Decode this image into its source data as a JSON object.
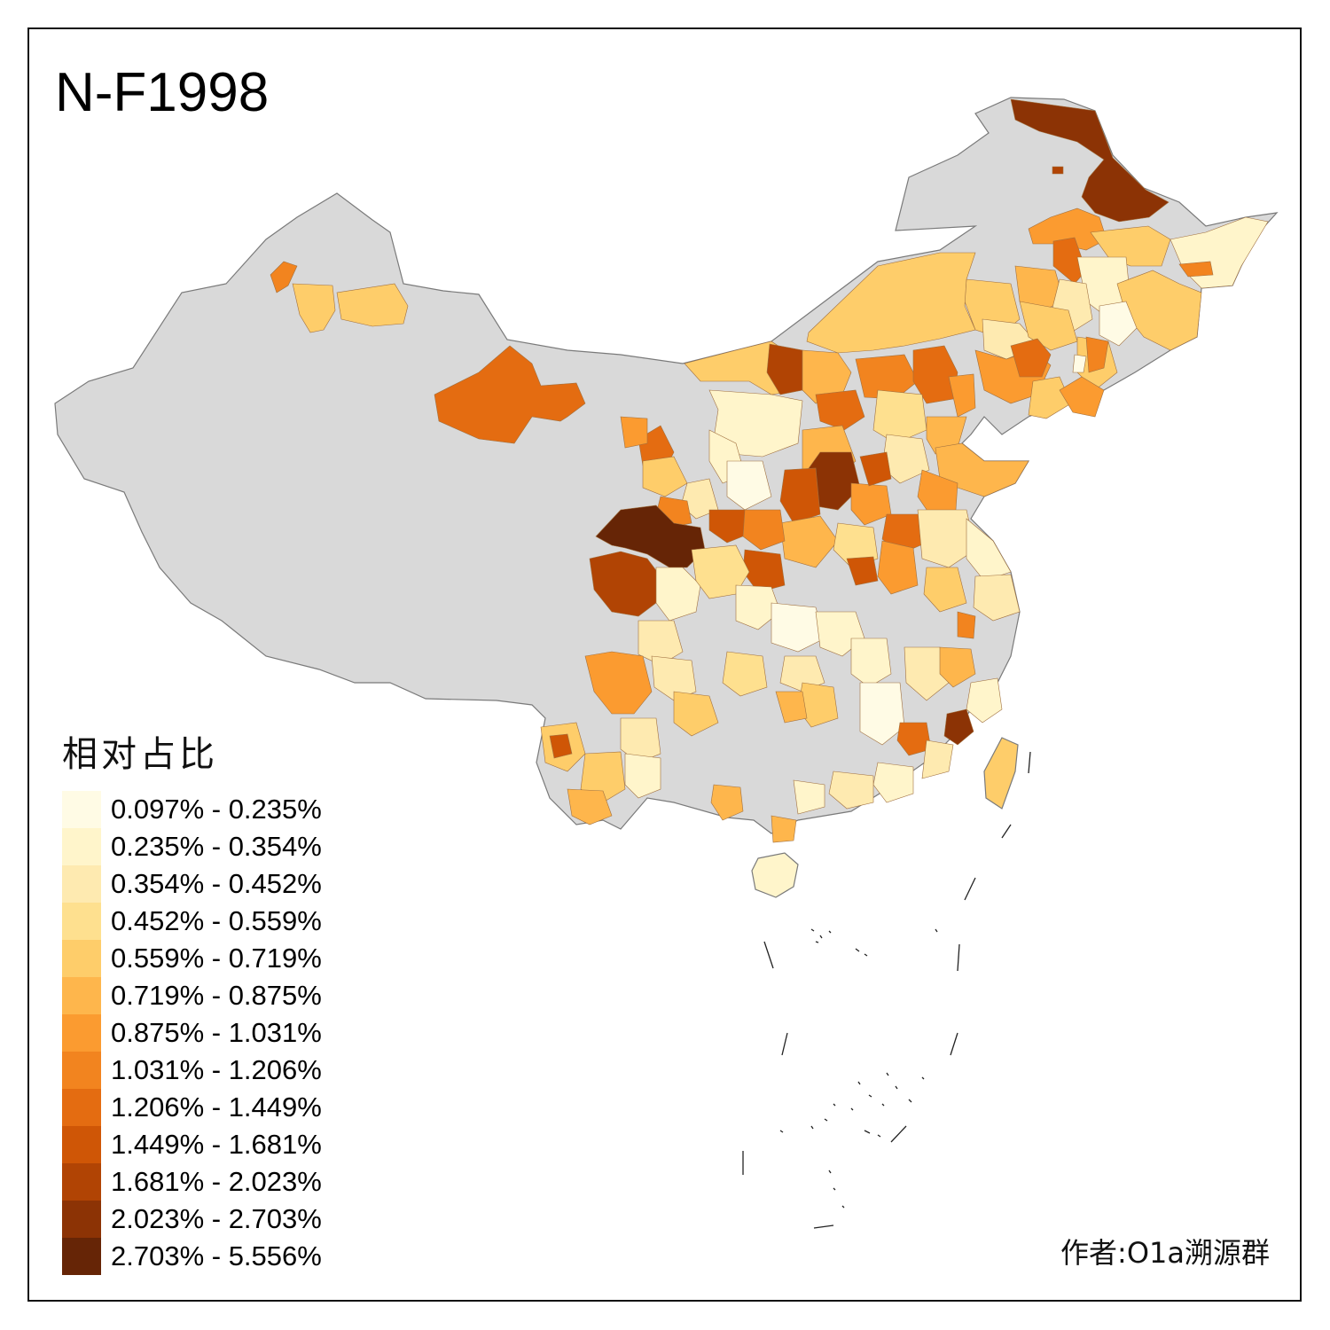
{
  "title": "N-F1998",
  "legend": {
    "title": "相对占比",
    "classes": [
      {
        "label": "0.097% - 0.235%",
        "color": "#FFFBE5"
      },
      {
        "label": "0.235% - 0.354%",
        "color": "#FFF5CB"
      },
      {
        "label": "0.354% - 0.452%",
        "color": "#FEEAB0"
      },
      {
        "label": "0.452% - 0.559%",
        "color": "#FEE08F"
      },
      {
        "label": "0.559% - 0.719%",
        "color": "#FECD6A"
      },
      {
        "label": "0.719% - 0.875%",
        "color": "#FEB64C"
      },
      {
        "label": "0.875% - 1.031%",
        "color": "#FB9B30"
      },
      {
        "label": "1.031% - 1.206%",
        "color": "#F2841F"
      },
      {
        "label": "1.206% - 1.449%",
        "color": "#E46C11"
      },
      {
        "label": "1.449% - 1.681%",
        "color": "#CF5606"
      },
      {
        "label": "1.681% - 2.023%",
        "color": "#B14404"
      },
      {
        "label": "2.023% - 2.703%",
        "color": "#8C3305"
      },
      {
        "label": "2.703% - 5.556%",
        "color": "#662506"
      }
    ]
  },
  "no_data_color": "#D9D9D9",
  "author": "作者:O1a溯源群"
}
